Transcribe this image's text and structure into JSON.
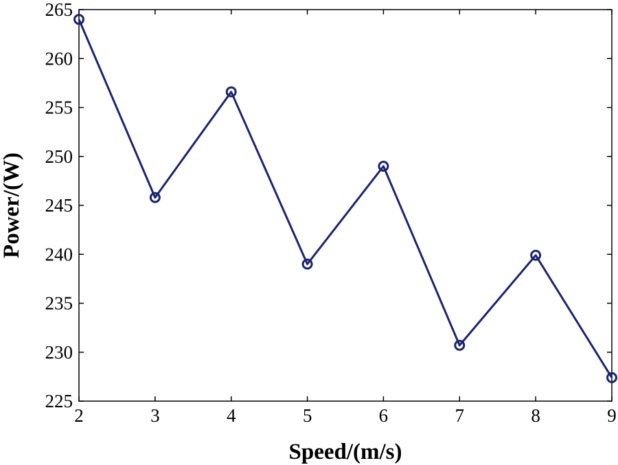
{
  "chart_data": {
    "type": "line",
    "xlabel": "Speed/(m/s)",
    "ylabel": "Power/(W)",
    "xlim": [
      2,
      9
    ],
    "ylim": [
      225,
      265
    ],
    "xticks": [
      "2",
      "3",
      "4",
      "5",
      "6",
      "7",
      "8",
      "9"
    ],
    "yticks": [
      "225",
      "230",
      "235",
      "240",
      "245",
      "250",
      "255",
      "260",
      "265"
    ],
    "grid": false,
    "series": [
      {
        "marker": "circle",
        "color": "#1a2470",
        "x": [
          2,
          3,
          4,
          5,
          6,
          7,
          8,
          9
        ],
        "y": [
          264.0,
          245.8,
          256.6,
          239.0,
          249.0,
          230.7,
          239.9,
          227.4
        ]
      }
    ]
  }
}
